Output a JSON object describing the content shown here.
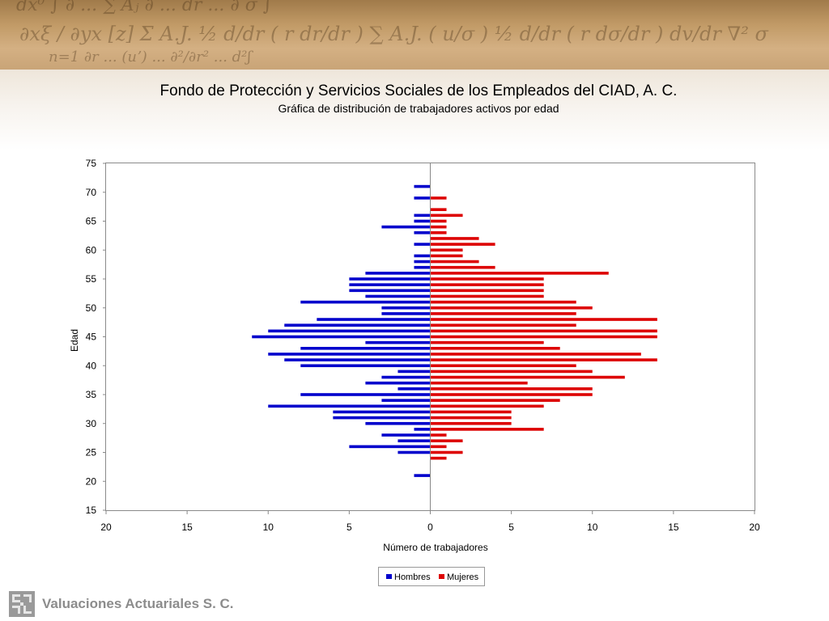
{
  "header": {
    "title": "Fondo de Protección y Servicios Sociales de los Empleados del CIAD, A. C.",
    "subtitle": "Gráfica de distribución de trabajadores activos por edad"
  },
  "footer": {
    "company": "Valuaciones Actuariales S. C."
  },
  "chart_data": {
    "type": "bar",
    "orientation": "horizontal",
    "xlabel": "Número de trabajadores",
    "ylabel": "Edad",
    "xlim": [
      -20,
      20
    ],
    "ylim": [
      15,
      75
    ],
    "xticks": [
      -20,
      -15,
      -10,
      -5,
      0,
      5,
      10,
      15,
      20
    ],
    "xtick_labels": [
      "20",
      "15",
      "10",
      "5",
      "0",
      "5",
      "10",
      "15",
      "20"
    ],
    "yticks": [
      15,
      20,
      25,
      30,
      35,
      40,
      45,
      50,
      55,
      60,
      65,
      70,
      75
    ],
    "yticks_labels": [
      "15",
      "20",
      "25",
      "30",
      "35",
      "40",
      "45",
      "50",
      "55",
      "60",
      "65",
      "70",
      "75"
    ],
    "grid": false,
    "legend_position": "bottom-center",
    "series": [
      {
        "name": "Hombres",
        "color": "#0000cc",
        "ages": [
          21,
          25,
          26,
          27,
          28,
          29,
          30,
          31,
          32,
          33,
          34,
          35,
          36,
          37,
          38,
          39,
          40,
          41,
          42,
          43,
          44,
          45,
          46,
          47,
          48,
          49,
          50,
          51,
          52,
          53,
          54,
          55,
          56,
          57,
          58,
          59,
          61,
          63,
          64,
          65,
          66,
          69,
          71
        ],
        "values": [
          1,
          2,
          5,
          2,
          3,
          1,
          4,
          6,
          6,
          10,
          3,
          8,
          2,
          4,
          3,
          2,
          8,
          9,
          10,
          8,
          4,
          11,
          10,
          9,
          7,
          3,
          3,
          8,
          4,
          5,
          5,
          5,
          4,
          1,
          1,
          1,
          1,
          1,
          3,
          1,
          1,
          1,
          1
        ]
      },
      {
        "name": "Mujeres",
        "color": "#dd0000",
        "ages": [
          24,
          25,
          26,
          27,
          28,
          29,
          30,
          31,
          32,
          33,
          34,
          35,
          36,
          37,
          38,
          39,
          40,
          41,
          42,
          43,
          44,
          45,
          46,
          47,
          48,
          49,
          50,
          51,
          52,
          53,
          54,
          55,
          56,
          57,
          58,
          59,
          60,
          61,
          62,
          63,
          64,
          65,
          66,
          67,
          69
        ],
        "values": [
          1,
          2,
          1,
          2,
          1,
          7,
          5,
          5,
          5,
          7,
          8,
          10,
          10,
          6,
          12,
          10,
          9,
          14,
          13,
          8,
          7,
          14,
          14,
          9,
          14,
          9,
          10,
          9,
          7,
          7,
          7,
          7,
          11,
          4,
          3,
          2,
          2,
          4,
          3,
          1,
          1,
          1,
          2,
          1,
          1
        ]
      }
    ]
  }
}
